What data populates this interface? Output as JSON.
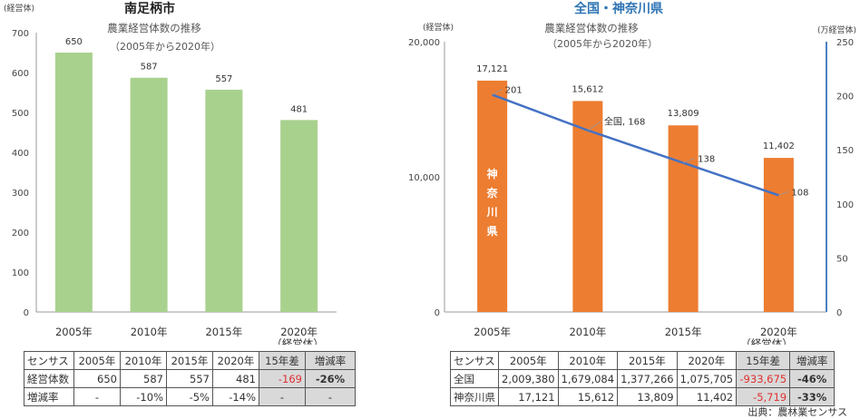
{
  "chart_data": [
    {
      "type": "bar",
      "title": "南足柄市",
      "subtitle": "農業経営体数の推移",
      "period": "（2005年から2020年）",
      "ylabel": "(経営体)",
      "ylim": [
        0,
        700
      ],
      "yticks": [
        0,
        100,
        200,
        300,
        400,
        500,
        600,
        700
      ],
      "categories": [
        "2005年",
        "2010年",
        "2015年",
        "2020年"
      ],
      "category_note": "（経営体）",
      "values": [
        650,
        587,
        557,
        481
      ],
      "value_labels": [
        "650",
        "587",
        "557",
        "481"
      ],
      "bar_color": "#a9d18e"
    },
    {
      "type": "bar+line",
      "title": "全国・神奈川県",
      "subtitle": "農業経営体数の推移",
      "period": "（2005年から2020年）",
      "ylabel_left": "(経営体)",
      "ylabel_right": "(万経営体)",
      "ylim_left": [
        0,
        20000
      ],
      "yticks_left": [
        0,
        10000,
        20000
      ],
      "ytick_labels_left": [
        "0",
        "10,000",
        "20,000"
      ],
      "ylim_right": [
        0,
        250
      ],
      "yticks_right": [
        0,
        50,
        100,
        150,
        200,
        250
      ],
      "categories": [
        "2005年",
        "2010年",
        "2015年",
        "2020年"
      ],
      "category_note": "（経営体）",
      "series": [
        {
          "name": "神奈川県",
          "type": "bar",
          "axis": "left",
          "values": [
            17121,
            15612,
            13809,
            11402
          ],
          "value_labels": [
            "17,121",
            "15,612",
            "13,809",
            "11,402"
          ],
          "color": "#ed7d31",
          "bar_text": "神奈川県"
        },
        {
          "name": "全国",
          "type": "line",
          "axis": "right",
          "values": [
            201,
            168,
            138,
            108
          ],
          "value_labels": [
            "201",
            "全国, 168",
            "138",
            "108"
          ],
          "color": "#4472c4"
        }
      ]
    }
  ],
  "tables": {
    "left": {
      "header": [
        "センサス",
        "2005年",
        "2010年",
        "2015年",
        "2020年",
        "15年差",
        "増減率"
      ],
      "rows": [
        [
          "経営体数",
          "650",
          "587",
          "557",
          "481",
          "-169",
          "-26%"
        ],
        [
          "増減率",
          "-",
          "-10%",
          "-5%",
          "-14%",
          "-",
          "-"
        ]
      ]
    },
    "right": {
      "header": [
        "センサス",
        "2005年",
        "2010年",
        "2015年",
        "2020年",
        "15年差",
        "増減率"
      ],
      "rows": [
        [
          "全国",
          "2,009,380",
          "1,679,084",
          "1,377,266",
          "1,075,705",
          "-933,675",
          "-46%"
        ],
        [
          "神奈川県",
          "17,121",
          "15,612",
          "13,809",
          "11,402",
          "-5,719",
          "-33%"
        ]
      ]
    }
  },
  "source": "出典：農林業センサス",
  "colors": {
    "axis": "#666666",
    "text": "#333333",
    "right_axis": "#4a7fc1",
    "title_left": "#222222",
    "title_right": "#2f75b5"
  }
}
